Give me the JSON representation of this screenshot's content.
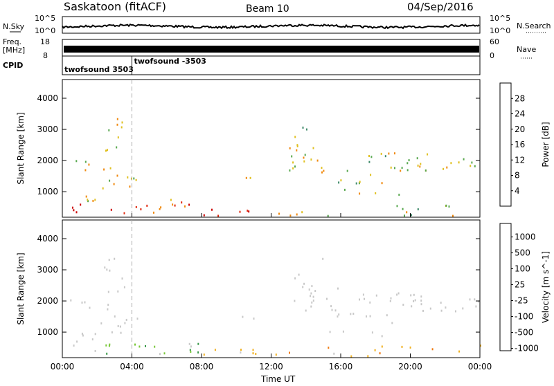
{
  "header": {
    "station": "Saskatoon (fitACF)",
    "beam": "Beam 10",
    "date": "04/Sep/2016"
  },
  "status": {
    "n_sky_label": "N.Sky",
    "n_search_label": "N.Search",
    "freq_label_1": "Freq.",
    "freq_label_2": "[MHz]",
    "nave_label": "Nave",
    "cpid_label": "CPID",
    "left_ticks_top": [
      "10^5",
      "10^0"
    ],
    "right_ticks_top": [
      "10^5",
      "10^0"
    ],
    "left_ticks_freq": [
      "18",
      "8"
    ],
    "right_ticks_nave": [
      "60",
      "0"
    ],
    "cpid_segments": [
      {
        "label": "twofsound 3503",
        "start_hour": 0.0
      },
      {
        "label": "twofsound -3503",
        "start_hour": 4.0
      }
    ]
  },
  "chart_data": [
    {
      "type": "heatmap",
      "title": "Power",
      "ylabel": "Slant Range [km]",
      "colorbar_label": "Power [dB]",
      "colorbar_ticks": [
        "4",
        "8",
        "12",
        "16",
        "20",
        "24",
        "28"
      ],
      "colors": [
        "#1a1aff",
        "#2a5aa8",
        "#3f8a6a",
        "#58a84e",
        "#e0c020",
        "#f08a10",
        "#e02a10",
        "#cc0000"
      ],
      "ylim": [
        180,
        4600
      ],
      "yticks": [
        1000,
        2000,
        3000,
        4000
      ],
      "xlim_hours": [
        0,
        24
      ],
      "xtick_labels": [
        "00:00",
        "04:00",
        "08:00",
        "12:00",
        "16:00",
        "20:00",
        "00:00"
      ],
      "marker_hour": 4.0
    },
    {
      "type": "heatmap",
      "title": "Velocity",
      "ylabel": "Slant Range [km]",
      "colorbar_label": "Velocity [m s^-1]",
      "colorbar_ticks": [
        "1000",
        "500",
        "100",
        "25",
        "-25",
        "-100",
        "-500",
        "-1000"
      ],
      "colors": [
        "#1a3aa8",
        "#2f6ea0",
        "#3a9a4a",
        "#7ac83a",
        "#c8c8c8",
        "#f0b020",
        "#f07a10",
        "#e02010"
      ],
      "ylim": [
        180,
        4600
      ],
      "yticks": [
        1000,
        2000,
        3000,
        4000
      ],
      "xlim_hours": [
        0,
        24
      ],
      "xtick_labels": [
        "00:00",
        "04:00",
        "08:00",
        "12:00",
        "16:00",
        "20:00",
        "00:00"
      ],
      "xlabel": "Time UT",
      "marker_hour": 4.0
    }
  ]
}
